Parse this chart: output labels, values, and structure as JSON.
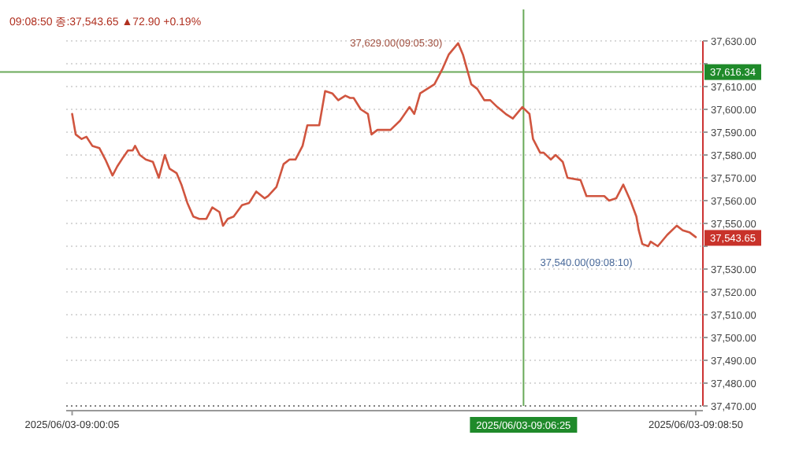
{
  "chart_data": {
    "type": "line",
    "subtitle": "09:08:50 종:37,543.65 ▲72.90 +0.19%",
    "xlim": [
      "2025-06-03T09:00:00",
      "2025-06-03T09:08:56"
    ],
    "xticks": [
      {
        "value": "2025-06-03T09:00:05",
        "label": "2025/06/03-09:00:05"
      },
      {
        "value": "2025-06-03T09:08:50",
        "label": "2025/06/03-09:08:50"
      }
    ],
    "ylim": [
      37470,
      37630
    ],
    "yticks": [
      {
        "value": 37470,
        "label": "37,470.00"
      },
      {
        "value": 37480,
        "label": "37,480.00"
      },
      {
        "value": 37490,
        "label": "37,490.00"
      },
      {
        "value": 37500,
        "label": "37,500.00"
      },
      {
        "value": 37510,
        "label": "37,510.00"
      },
      {
        "value": 37520,
        "label": "37,520.00"
      },
      {
        "value": 37530,
        "label": "37,530.00"
      },
      {
        "value": 37540,
        "label": null
      },
      {
        "value": 37550,
        "label": "37,550.00"
      },
      {
        "value": 37560,
        "label": "37,560.00"
      },
      {
        "value": 37570,
        "label": "37,570.00"
      },
      {
        "value": 37580,
        "label": "37,580.00"
      },
      {
        "value": 37590,
        "label": "37,590.00"
      },
      {
        "value": 37600,
        "label": "37,600.00"
      },
      {
        "value": 37610,
        "label": "37,610.00"
      },
      {
        "value": 37620,
        "label": null
      },
      {
        "value": 37630,
        "label": "37,630.00"
      }
    ],
    "grid": "y",
    "marker": "none",
    "line_style": "solid",
    "series": [
      {
        "color": "#d0553f",
        "x": [
          "2025-06-03T09:00:05",
          "2025-06-03T09:00:08",
          "2025-06-03T09:00:13",
          "2025-06-03T09:00:17",
          "2025-06-03T09:00:22",
          "2025-06-03T09:00:28",
          "2025-06-03T09:00:33",
          "2025-06-03T09:00:39",
          "2025-06-03T09:00:43",
          "2025-06-03T09:00:48",
          "2025-06-03T09:00:52",
          "2025-06-03T09:00:56",
          "2025-06-03T09:00:58",
          "2025-06-03T09:01:02",
          "2025-06-03T09:01:07",
          "2025-06-03T09:01:13",
          "2025-06-03T09:01:18",
          "2025-06-03T09:01:23",
          "2025-06-03T09:01:27",
          "2025-06-03T09:01:33",
          "2025-06-03T09:01:37",
          "2025-06-03T09:01:42",
          "2025-06-03T09:01:47",
          "2025-06-03T09:01:52",
          "2025-06-03T09:01:58",
          "2025-06-03T09:02:03",
          "2025-06-03T09:02:09",
          "2025-06-03T09:02:12",
          "2025-06-03T09:02:16",
          "2025-06-03T09:02:21",
          "2025-06-03T09:02:28",
          "2025-06-03T09:02:34",
          "2025-06-03T09:02:40",
          "2025-06-03T09:02:47",
          "2025-06-03T09:02:50",
          "2025-06-03T09:02:57",
          "2025-06-03T09:03:03",
          "2025-06-03T09:03:08",
          "2025-06-03T09:03:13",
          "2025-06-03T09:03:19",
          "2025-06-03T09:03:23",
          "2025-06-03T09:03:29",
          "2025-06-03T09:03:33",
          "2025-06-03T09:03:38",
          "2025-06-03T09:03:44",
          "2025-06-03T09:03:49",
          "2025-06-03T09:03:55",
          "2025-06-03T09:03:59",
          "2025-06-03T09:04:02",
          "2025-06-03T09:04:08",
          "2025-06-03T09:04:14",
          "2025-06-03T09:04:17",
          "2025-06-03T09:04:22",
          "2025-06-03T09:04:27",
          "2025-06-03T09:04:33",
          "2025-06-03T09:04:41",
          "2025-06-03T09:04:49",
          "2025-06-03T09:04:53",
          "2025-06-03T09:04:58",
          "2025-06-03T09:05:04",
          "2025-06-03T09:05:10",
          "2025-06-03T09:05:17",
          "2025-06-03T09:05:22",
          "2025-06-03T09:05:30",
          "2025-06-03T09:05:34",
          "2025-06-03T09:05:41",
          "2025-06-03T09:05:46",
          "2025-06-03T09:05:52",
          "2025-06-03T09:05:57",
          "2025-06-03T09:06:03",
          "2025-06-03T09:06:10",
          "2025-06-03T09:06:16",
          "2025-06-03T09:06:24",
          "2025-06-03T09:06:30",
          "2025-06-03T09:06:33",
          "2025-06-03T09:06:39",
          "2025-06-03T09:06:42",
          "2025-06-03T09:06:48",
          "2025-06-03T09:06:52",
          "2025-06-03T09:06:58",
          "2025-06-03T09:07:02",
          "2025-06-03T09:07:13",
          "2025-06-03T09:07:18",
          "2025-06-03T09:07:26",
          "2025-06-03T09:07:33",
          "2025-06-03T09:07:37",
          "2025-06-03T09:07:43",
          "2025-06-03T09:07:49",
          "2025-06-03T09:07:55",
          "2025-06-03T09:08:00",
          "2025-06-03T09:08:02",
          "2025-06-03T09:08:05",
          "2025-06-03T09:08:10",
          "2025-06-03T09:08:12",
          "2025-06-03T09:08:18",
          "2025-06-03T09:08:26",
          "2025-06-03T09:08:34",
          "2025-06-03T09:08:39",
          "2025-06-03T09:08:45",
          "2025-06-03T09:08:50"
        ],
        "values": [
          37598,
          37589,
          37587,
          37588,
          37584,
          37583,
          37578,
          37571,
          37575,
          37579,
          37582,
          37582,
          37584,
          37580,
          37578,
          37577,
          37570,
          37580,
          37574,
          37572,
          37567,
          37559,
          37553,
          37552,
          37552,
          37557,
          37555,
          37549,
          37552,
          37553,
          37558,
          37559,
          37564,
          37561,
          37562,
          37566,
          37576,
          37578,
          37578,
          37584,
          37593,
          37593,
          37593,
          37608,
          37607,
          37604,
          37606,
          37605,
          37605,
          37600,
          37598,
          37589,
          37591,
          37591,
          37591,
          37595,
          37601,
          37598,
          37607,
          37609,
          37611,
          37618,
          37624,
          37629,
          37624,
          37611,
          37609,
          37604,
          37604,
          37601,
          37598,
          37596,
          37601,
          37598,
          37587,
          37581,
          37581,
          37578,
          37580,
          37577,
          37570,
          37569,
          37562,
          37562,
          37562,
          37560,
          37561,
          37567,
          37560,
          37553,
          37547,
          37541,
          37540,
          37542,
          37540,
          37545,
          37549,
          37547,
          37546,
          37544
        ]
      }
    ],
    "ref_lines": [
      {
        "axis": "x",
        "value": "2025-06-03T09:06:25",
        "label": "2025/06/03-09:06:25",
        "color": "#6aaa5a"
      },
      {
        "axis": "y",
        "value": 37616.34,
        "label": "37,616.34",
        "color": "#6aaa5a"
      }
    ],
    "annotations": [
      {
        "text": "37,629.00(09:05:30)",
        "x": "2025-06-03T09:05:30",
        "y": 37629
      },
      {
        "text": "37,540.00(09:08:10)",
        "x": "2025-06-03T09:08:10",
        "y": 37540
      },
      {
        "text": "37,543.65",
        "x": "2025-06-03T09:08:50",
        "y": 37543.65
      }
    ]
  }
}
